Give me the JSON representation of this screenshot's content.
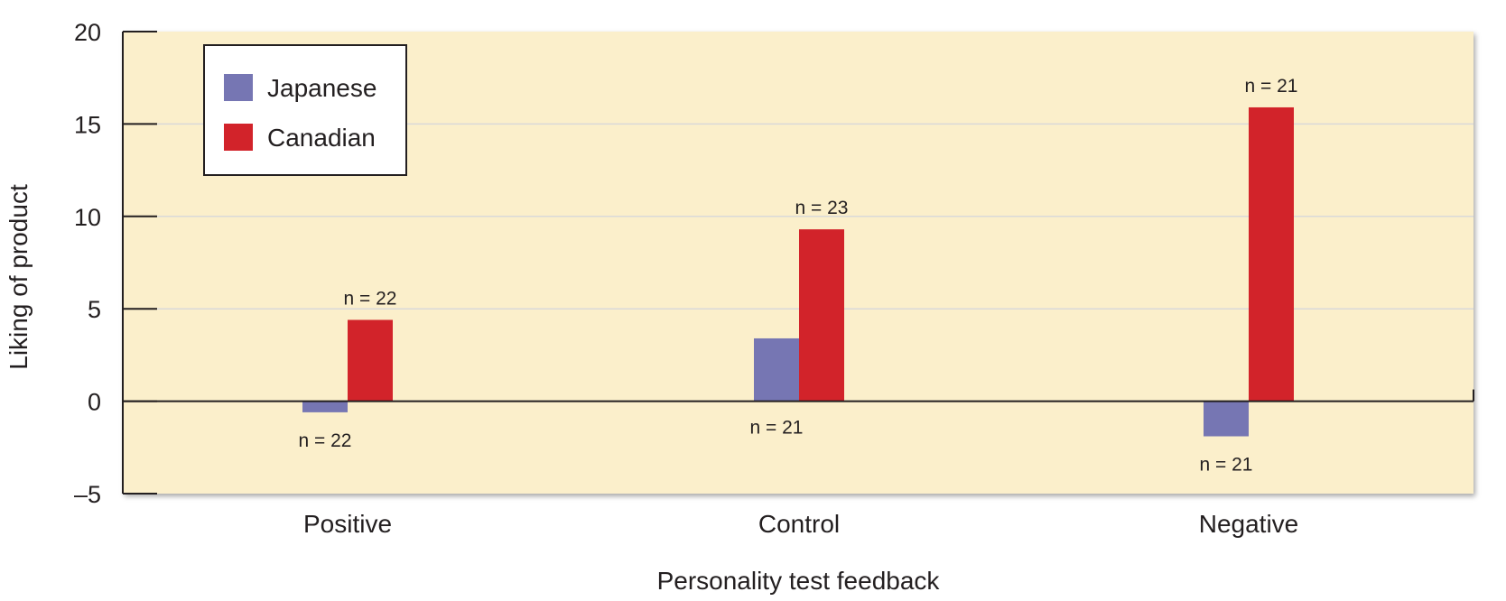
{
  "chart_data": {
    "type": "bar",
    "categories": [
      "Positive",
      "Control",
      "Negative"
    ],
    "series": [
      {
        "name": "Japanese",
        "values": [
          -0.6,
          3.4,
          -1.9
        ],
        "n_labels": [
          "n = 22",
          "n = 21",
          "n = 21"
        ],
        "color": "#7676b3"
      },
      {
        "name": "Canadian",
        "values": [
          4.4,
          9.3,
          15.9
        ],
        "n_labels": [
          "n = 22",
          "n = 23",
          "n = 21"
        ],
        "color": "#d2232a"
      }
    ],
    "xlabel": "Personality test feedback",
    "ylabel": "Liking of product",
    "ylim": [
      -5,
      20
    ],
    "yticks": [
      20,
      15,
      10,
      5,
      0,
      -5
    ],
    "ytick_labels": [
      "20",
      "15",
      "10",
      "5",
      "0",
      "–5"
    ],
    "grid": true,
    "legend_position": "top-left",
    "colors": {
      "plot_background": "#fbefcb",
      "gridline": "#d9d9d9",
      "axis": "#231f20"
    }
  }
}
